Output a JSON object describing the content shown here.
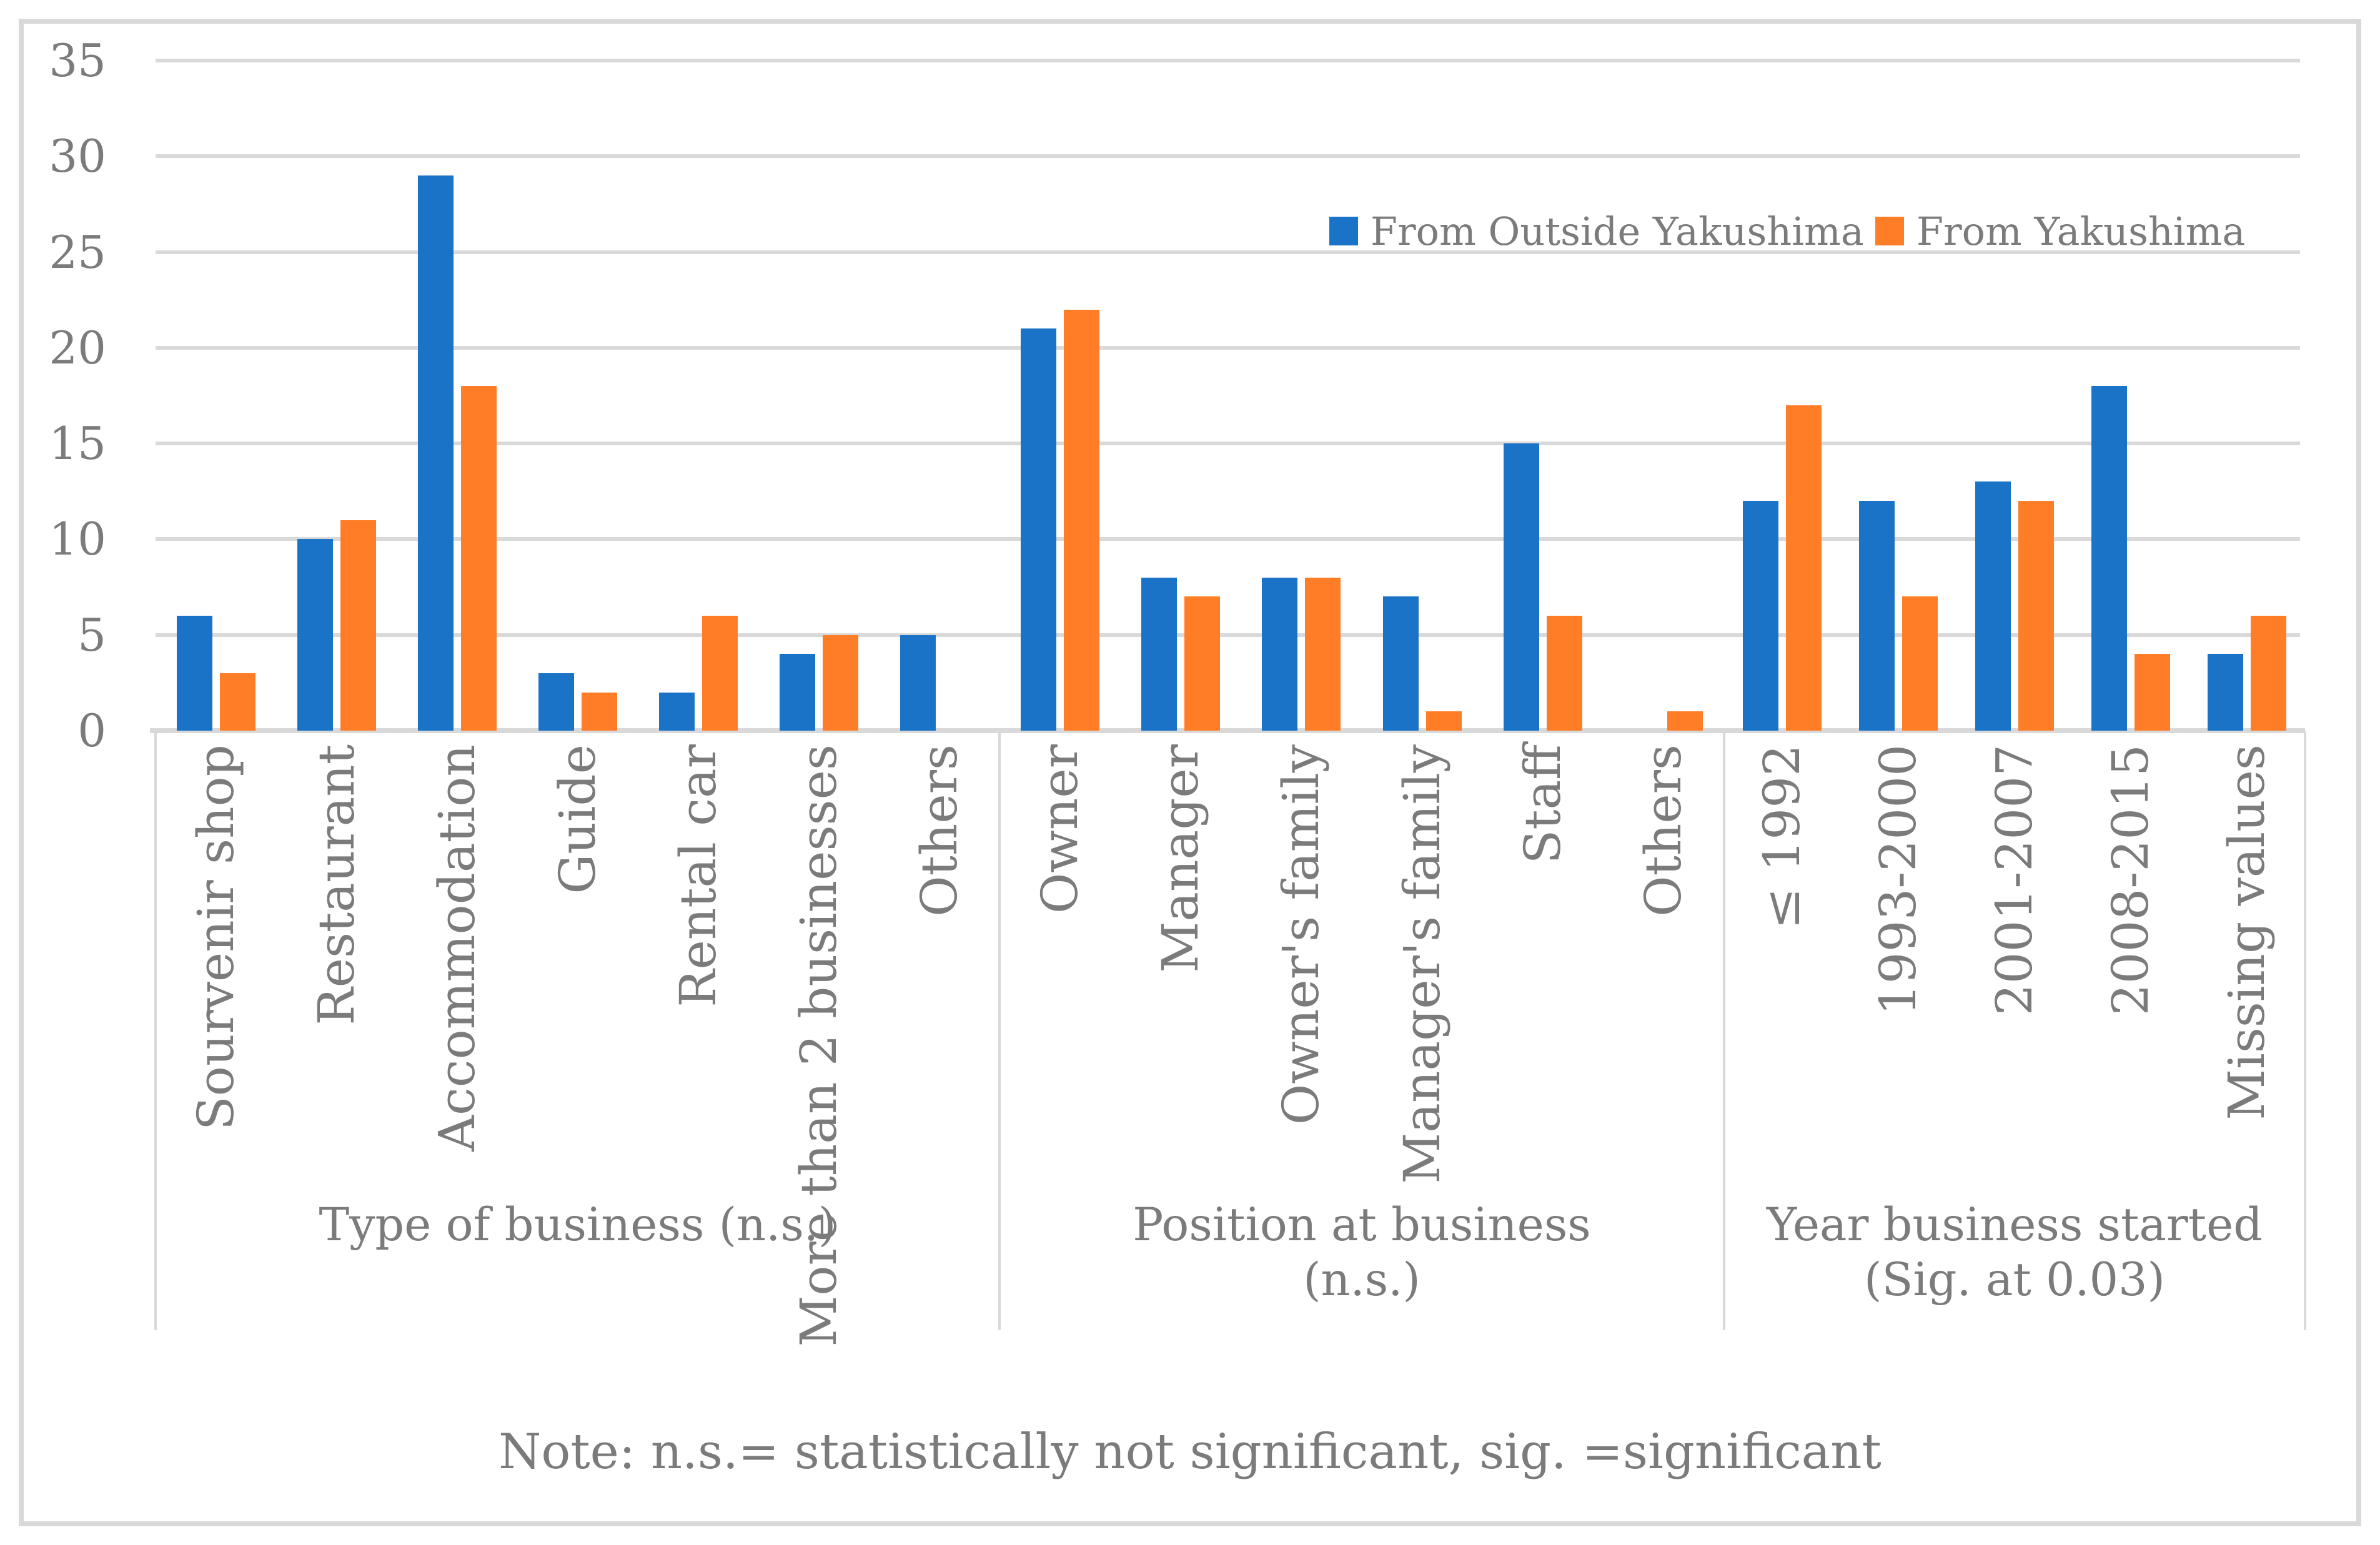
{
  "note": "Note: n.s.= statistically not significant, sig. =significant",
  "colors": {
    "series_outside": "#1B73C7",
    "series_yakushima": "#FF7D27",
    "grid": "#D9D9D9",
    "text": "#7B7B7B"
  },
  "y_axis": {
    "min": 0,
    "max": 35,
    "step": 5,
    "tick_labels": [
      "0",
      "5",
      "10",
      "15",
      "20",
      "25",
      "30",
      "35"
    ]
  },
  "legend": {
    "items": [
      {
        "label": "From Outside Yakushima",
        "color": "#1B73C7"
      },
      {
        "label": "From Yakushima",
        "color": "#FF7D27"
      }
    ]
  },
  "chart_data": {
    "type": "bar",
    "title": "",
    "xlabel": "",
    "ylabel": "",
    "ylim": [
      0,
      35
    ],
    "ytick_step": 5,
    "grid": true,
    "legend_position": "top-right-inside",
    "series_names": [
      "From Outside Yakushima",
      "From Yakushima"
    ],
    "groups": [
      {
        "title": "Type of business (n.s.)",
        "categories": [
          "Sourvenir shop",
          "Restaurant",
          "Accommodation",
          "Guide",
          "Rental car",
          "More than 2 businesses",
          "Others"
        ],
        "series": [
          {
            "name": "From Outside Yakushima",
            "values": [
              6,
              10,
              29,
              3,
              2,
              4,
              5
            ]
          },
          {
            "name": "From Yakushima",
            "values": [
              3,
              11,
              18,
              2,
              6,
              5,
              0
            ]
          }
        ]
      },
      {
        "title": "Position at business (n.s.)",
        "categories": [
          "Owner",
          "Manager",
          "Owner's family",
          "Manager's family",
          "Staff",
          "Others"
        ],
        "series": [
          {
            "name": "From Outside Yakushima",
            "values": [
              21,
              8,
              8,
              7,
              15,
              0
            ]
          },
          {
            "name": "From Yakushima",
            "values": [
              22,
              7,
              8,
              1,
              6,
              1
            ]
          }
        ]
      },
      {
        "title": "Year business started (Sig. at 0.03)",
        "categories": [
          "≤ 1992",
          "1993-2000",
          "2001-2007",
          "2008-2015",
          "Missing values"
        ],
        "series": [
          {
            "name": "From Outside Yakushima",
            "values": [
              12,
              12,
              13,
              18,
              4
            ]
          },
          {
            "name": "From Yakushima",
            "values": [
              17,
              7,
              12,
              4,
              6
            ]
          }
        ]
      }
    ]
  }
}
